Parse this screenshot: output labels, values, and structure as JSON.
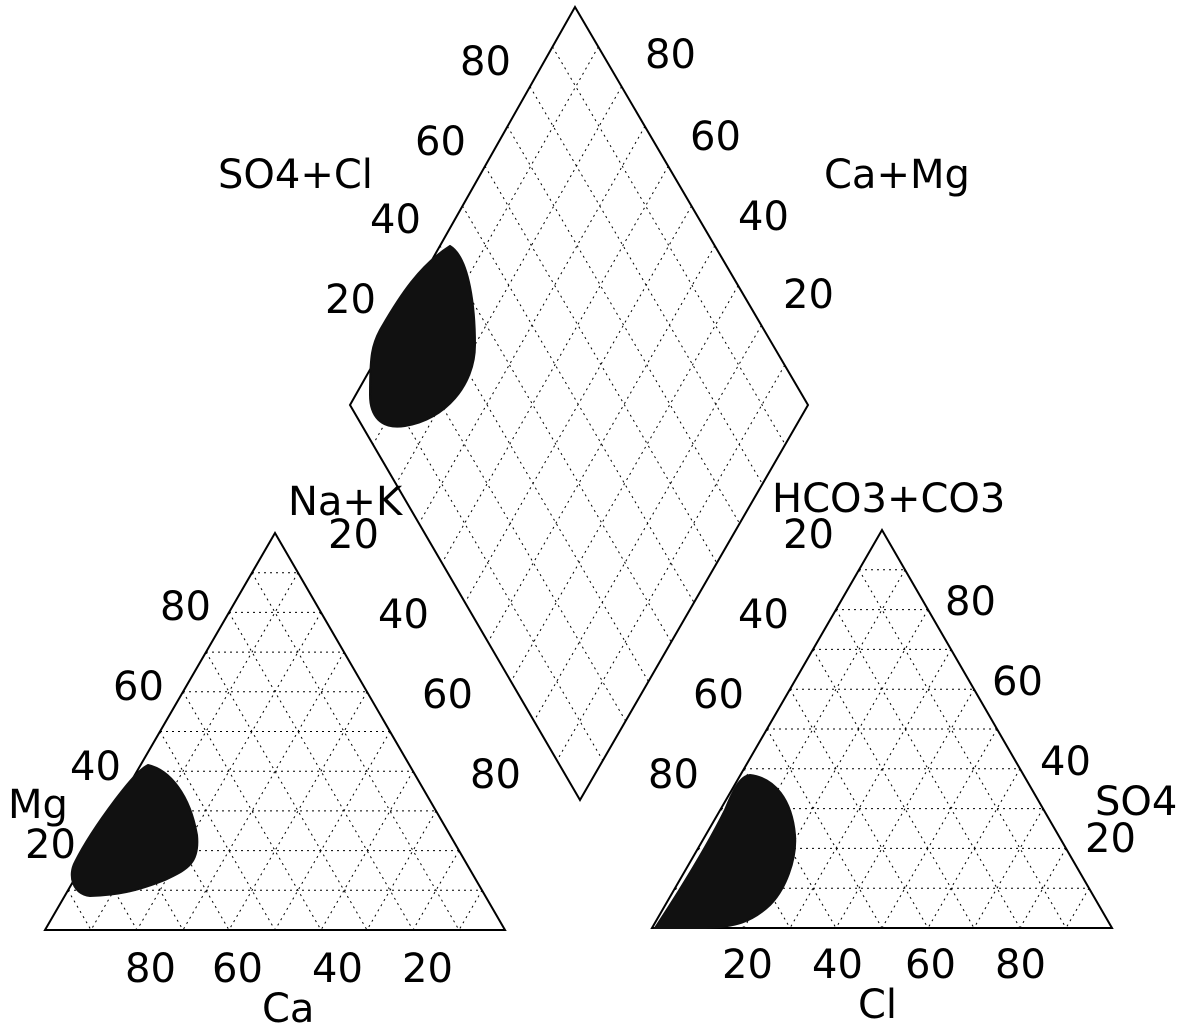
{
  "diagram": {
    "type": "piper",
    "colors": {
      "line": "#000000",
      "fill": "#111111",
      "background": "#ffffff"
    },
    "cation_triangle": {
      "corner_label_top": "Na+K",
      "corner_label_left": "Mg",
      "bottom_axis_label": "Ca",
      "left_ticks": [
        "80",
        "60",
        "40",
        "20"
      ],
      "right_ticks": [
        "20",
        "40",
        "60",
        "80"
      ],
      "bottom_ticks": [
        "80",
        "60",
        "40",
        "20"
      ]
    },
    "anion_triangle": {
      "corner_label_top": "HCO3+CO3",
      "corner_label_right": "SO4",
      "bottom_axis_label": "Cl",
      "left_ticks": [
        "20",
        "40",
        "60",
        "80"
      ],
      "right_ticks": [
        "80",
        "60",
        "40",
        "20"
      ],
      "bottom_ticks": [
        "20",
        "40",
        "60",
        "80"
      ]
    },
    "diamond": {
      "left_axis_label": "SO4+Cl",
      "right_axis_label": "Ca+Mg",
      "left_ticks": [
        "80",
        "60",
        "40",
        "20"
      ],
      "right_ticks": [
        "80",
        "60",
        "40",
        "20"
      ]
    }
  }
}
